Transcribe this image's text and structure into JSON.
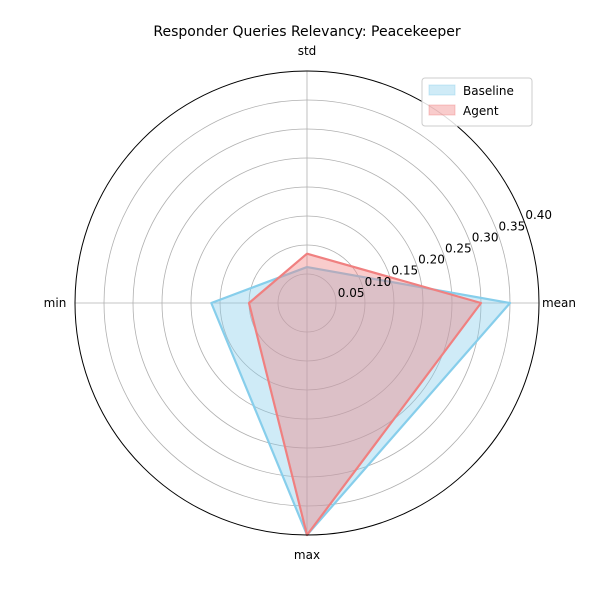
{
  "chart_data": {
    "type": "radar",
    "title": "Responder Queries Relevancy: Peacekeeper",
    "categories": [
      "mean",
      "std",
      "min",
      "max"
    ],
    "rlim": [
      0,
      0.4
    ],
    "rticks": [
      "0.05",
      "0.10",
      "0.15",
      "0.20",
      "0.25",
      "0.30",
      "0.35",
      "0.40"
    ],
    "rtick_values": [
      0.05,
      0.1,
      0.15,
      0.2,
      0.25,
      0.3,
      0.35,
      0.4
    ],
    "grid": true,
    "legend_position": "upper-right",
    "series": [
      {
        "name": "Baseline",
        "values": [
          0.35,
          0.062,
          0.165,
          0.4
        ],
        "color": "#87CEEB"
      },
      {
        "name": "Agent",
        "values": [
          0.3,
          0.085,
          0.1,
          0.4
        ],
        "color": "#F08080"
      }
    ]
  }
}
